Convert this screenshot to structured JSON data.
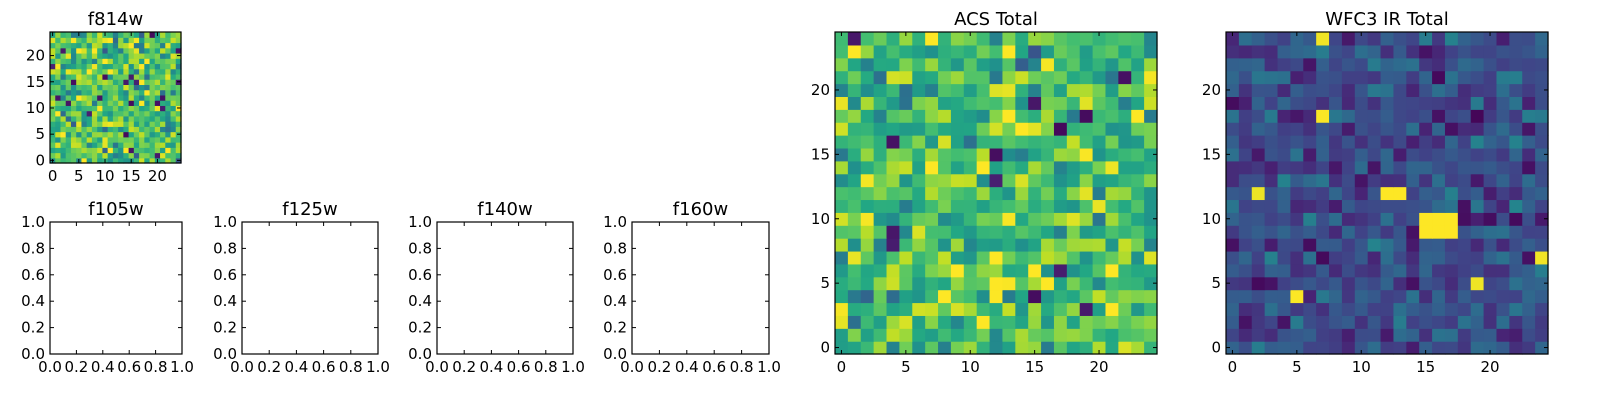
{
  "chart_data": [
    {
      "type": "heatmap",
      "title": "f814w",
      "grid_size": 25,
      "xticks": [
        0,
        5,
        10,
        15,
        20
      ],
      "yticks": [
        0,
        5,
        10,
        15,
        20
      ],
      "xtick_labels": [
        "0",
        "5",
        "10",
        "15",
        "20"
      ],
      "ytick_labels": [
        "0",
        "5",
        "10",
        "15",
        "20"
      ],
      "colormap": "viridis",
      "seed": 11,
      "mean": 0.7,
      "spread": 0.22,
      "hot_spots": []
    },
    {
      "type": "heatmap",
      "title": "ACS Total",
      "grid_size": 25,
      "xticks": [
        0,
        5,
        10,
        15,
        20
      ],
      "yticks": [
        0,
        5,
        10,
        15,
        20
      ],
      "xtick_labels": [
        "0",
        "5",
        "10",
        "15",
        "20"
      ],
      "ytick_labels": [
        "0",
        "5",
        "10",
        "15",
        "20"
      ],
      "colormap": "viridis",
      "seed": 37,
      "mean": 0.7,
      "spread": 0.22,
      "hot_spots": []
    },
    {
      "type": "heatmap",
      "title": "WFC3 IR Total",
      "grid_size": 25,
      "xticks": [
        0,
        5,
        10,
        15,
        20
      ],
      "yticks": [
        0,
        5,
        10,
        15,
        20
      ],
      "xtick_labels": [
        "0",
        "5",
        "10",
        "15",
        "20"
      ],
      "ytick_labels": [
        "0",
        "5",
        "10",
        "15",
        "20"
      ],
      "colormap": "viridis",
      "seed": 73,
      "mean": 0.24,
      "spread": 0.12,
      "hot_spots": [
        {
          "x0": 12,
          "x1": 13,
          "y0": 12,
          "y1": 12,
          "value": 1.0
        },
        {
          "x0": 15,
          "x1": 17,
          "y0": 9,
          "y1": 10,
          "value": 1.0
        }
      ]
    },
    {
      "type": "empty",
      "title": "f105w",
      "xlim": [
        0,
        1
      ],
      "ylim": [
        0,
        1
      ],
      "xtick_labels": [
        "0.0",
        "0.2",
        "0.4",
        "0.6",
        "0.8",
        "1.0"
      ],
      "ytick_labels": [
        "0.0",
        "0.2",
        "0.4",
        "0.6",
        "0.8",
        "1.0"
      ]
    },
    {
      "type": "empty",
      "title": "f125w",
      "xlim": [
        0,
        1
      ],
      "ylim": [
        0,
        1
      ],
      "xtick_labels": [
        "0.0",
        "0.2",
        "0.4",
        "0.6",
        "0.8",
        "1.0"
      ],
      "ytick_labels": [
        "0.0",
        "0.2",
        "0.4",
        "0.6",
        "0.8",
        "1.0"
      ]
    },
    {
      "type": "empty",
      "title": "f140w",
      "xlim": [
        0,
        1
      ],
      "ylim": [
        0,
        1
      ],
      "xtick_labels": [
        "0.0",
        "0.2",
        "0.4",
        "0.6",
        "0.8",
        "1.0"
      ],
      "ytick_labels": [
        "0.0",
        "0.2",
        "0.4",
        "0.6",
        "0.8",
        "1.0"
      ]
    },
    {
      "type": "empty",
      "title": "f160w",
      "xlim": [
        0,
        1
      ],
      "ylim": [
        0,
        1
      ],
      "xtick_labels": [
        "0.0",
        "0.2",
        "0.4",
        "0.6",
        "0.8",
        "1.0"
      ],
      "ytick_labels": [
        "0.0",
        "0.2",
        "0.4",
        "0.6",
        "0.8",
        "1.0"
      ]
    }
  ]
}
